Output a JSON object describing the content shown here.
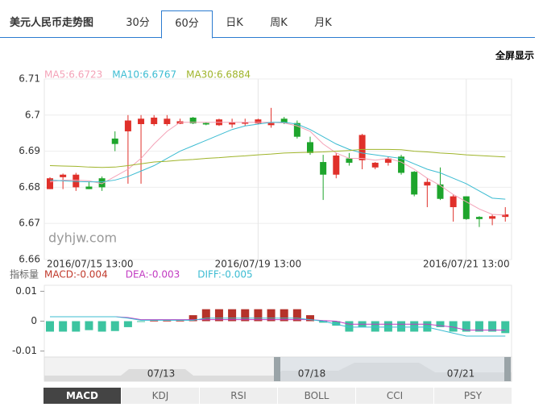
{
  "tabs": [
    "美元人民币走势图",
    "30分",
    "60分",
    "日K",
    "周K",
    "月K"
  ],
  "fullscreen": "全屏显示",
  "watermark": "dyhjw.com",
  "indicator_label": "指标量",
  "indicator_tabs": [
    "MACD",
    "KDJ",
    "RSI",
    "BOLL",
    "CCI",
    "PSY"
  ],
  "navigator_labels": [
    "07/13",
    "07/18",
    "07/21"
  ],
  "chart_data": [
    {
      "type": "candlestick",
      "categories": [
        "2016/07/15 13:00",
        null,
        null,
        null,
        null,
        null,
        null,
        null,
        null,
        null,
        null,
        null,
        null,
        null,
        null,
        null,
        "2016/07/19 13:00",
        null,
        null,
        null,
        null,
        null,
        null,
        null,
        null,
        null,
        null,
        null,
        null,
        null,
        null,
        null,
        "2016/07/21 13:00",
        null,
        null,
        null
      ],
      "open": [
        6.6795,
        6.6828,
        6.68,
        6.6802,
        6.6825,
        6.6935,
        6.6955,
        6.6975,
        6.6975,
        6.6975,
        6.6976,
        6.6993,
        6.6978,
        6.6972,
        6.6974,
        6.6976,
        6.6977,
        6.6972,
        6.699,
        6.6978,
        6.6925,
        6.687,
        6.6835,
        6.688,
        6.6875,
        6.6855,
        6.6868,
        6.6885,
        6.6843,
        6.6805,
        6.6808,
        6.6745,
        6.6775,
        6.6718,
        6.6713,
        6.6718
      ],
      "high": [
        6.6828,
        6.6838,
        6.684,
        6.6815,
        6.683,
        6.6955,
        6.7,
        6.7,
        6.7,
        6.7,
        6.699,
        6.6995,
        6.698,
        6.699,
        6.699,
        6.699,
        6.699,
        6.702,
        6.6995,
        6.6985,
        6.694,
        6.689,
        6.6895,
        6.6895,
        6.6948,
        6.687,
        6.6885,
        6.689,
        6.6845,
        6.6825,
        6.6855,
        6.678,
        6.6775,
        6.672,
        6.6725,
        6.6745
      ],
      "low": [
        6.6795,
        6.6795,
        6.679,
        6.6795,
        6.679,
        6.69,
        6.681,
        6.681,
        6.697,
        6.697,
        6.6975,
        6.6975,
        6.6972,
        6.697,
        6.6965,
        6.697,
        6.6975,
        6.6965,
        6.6975,
        6.6935,
        6.689,
        6.6765,
        6.6825,
        6.686,
        6.685,
        6.685,
        6.686,
        6.6835,
        6.6775,
        6.6745,
        6.6765,
        6.6705,
        6.671,
        6.669,
        6.6695,
        6.6705
      ],
      "close": [
        6.6825,
        6.6835,
        6.6835,
        6.6795,
        6.68,
        6.692,
        6.6985,
        6.699,
        6.6993,
        6.699,
        6.6983,
        6.6977,
        6.6974,
        6.6988,
        6.698,
        6.698,
        6.6988,
        6.6978,
        6.6978,
        6.694,
        6.6895,
        6.6835,
        6.6888,
        6.6868,
        6.6945,
        6.6868,
        6.688,
        6.684,
        6.678,
        6.6815,
        6.6768,
        6.6775,
        6.6712,
        6.6712,
        6.672,
        6.6725
      ],
      "up_color": "#e0302a",
      "down_color": "#1ea52c",
      "series": [
        {
          "label": "MA5:6.6723",
          "color": "#f4a3b8",
          "values": [
            6.6815,
            6.682,
            6.682,
            6.6818,
            6.681,
            6.683,
            6.685,
            6.688,
            6.692,
            6.6955,
            6.698,
            6.698,
            6.698,
            6.698,
            6.698,
            6.698,
            6.698,
            6.698,
            6.6978,
            6.697,
            6.6955,
            6.692,
            6.6895,
            6.688,
            6.688,
            6.6875,
            6.688,
            6.687,
            6.685,
            6.6825,
            6.6805,
            6.678,
            6.676,
            6.674,
            6.6725,
            6.6723
          ]
        },
        {
          "label": "MA10:6.6767",
          "color": "#3cbcd2",
          "values": [
            6.682,
            6.6818,
            6.6816,
            6.6815,
            6.6815,
            6.682,
            6.683,
            6.6845,
            6.686,
            6.688,
            6.69,
            6.6915,
            6.693,
            6.6945,
            6.696,
            6.697,
            6.6975,
            6.698,
            6.698,
            6.6975,
            6.696,
            6.694,
            6.692,
            6.6905,
            6.6895,
            6.689,
            6.6885,
            6.688,
            6.6865,
            6.685,
            6.684,
            6.6825,
            6.681,
            6.679,
            6.677,
            6.6767
          ]
        },
        {
          "label": "MA30:6.6884",
          "color": "#9fb42a",
          "values": [
            6.686,
            6.6859,
            6.6858,
            6.6856,
            6.6855,
            6.6856,
            6.686,
            6.6865,
            6.687,
            6.6872,
            6.6875,
            6.6877,
            6.688,
            6.6882,
            6.6885,
            6.6887,
            6.689,
            6.6892,
            6.6895,
            6.6896,
            6.6897,
            6.6898,
            6.69,
            6.6902,
            6.6905,
            6.6905,
            6.6905,
            6.6904,
            6.69,
            6.6898,
            6.6895,
            6.6893,
            6.689,
            6.6888,
            6.6886,
            6.6884
          ]
        }
      ],
      "ylim": [
        6.66,
        6.71
      ],
      "yticks": [
        6.71,
        6.7,
        6.69,
        6.68,
        6.67,
        6.66
      ],
      "grid": true
    },
    {
      "type": "macd",
      "ylim": [
        -0.012,
        0.012
      ],
      "yticks": [
        0.01,
        0,
        -0.01
      ],
      "up_color": "#b5322a",
      "down_color": "#3cc4a0",
      "histogram": {
        "label": "MACD:-0.004",
        "values": [
          -0.0035,
          -0.0035,
          -0.0035,
          -0.003,
          -0.0035,
          -0.0033,
          -0.002,
          -0.0002,
          0.0002,
          0.0002,
          0.0002,
          0.002,
          0.004,
          0.004,
          0.004,
          0.004,
          0.004,
          0.004,
          0.004,
          0.004,
          0.002,
          -0.0005,
          -0.0015,
          -0.0035,
          -0.002,
          -0.0035,
          -0.0035,
          -0.0035,
          -0.0035,
          -0.0035,
          -0.002,
          -0.0035,
          -0.0035,
          -0.0035,
          -0.0035,
          -0.004
        ]
      },
      "series": [
        {
          "label": "DEA:-0.003",
          "color": "#c23ac2",
          "values": [
            0.0015,
            0.0015,
            0.0015,
            0.0015,
            0.0015,
            0.0015,
            0.0012,
            0.0005,
            0.0005,
            0.0005,
            0.0005,
            0.0005,
            0.0005,
            0.0005,
            0.0005,
            0.0005,
            0.0005,
            0.0005,
            0.0005,
            0.0005,
            0.0005,
            0.0002,
            0,
            -0.001,
            -0.001,
            -0.001,
            -0.001,
            -0.001,
            -0.001,
            -0.001,
            -0.0015,
            -0.002,
            -0.003,
            -0.003,
            -0.003,
            -0.003
          ]
        },
        {
          "label": "DIFF:-0.005",
          "color": "#3cbcd2",
          "values": [
            0.0015,
            0.0015,
            0.0015,
            0.0015,
            0.0015,
            0.0015,
            0.001,
            0.0003,
            0.0003,
            0.0003,
            0.0003,
            0.0003,
            0.001,
            0.001,
            0.001,
            0.001,
            0.001,
            0.001,
            0.001,
            0.001,
            0.0005,
            0,
            -0.001,
            -0.002,
            -0.002,
            -0.002,
            -0.002,
            -0.002,
            -0.002,
            -0.002,
            -0.003,
            -0.004,
            -0.005,
            -0.005,
            -0.005,
            -0.005
          ]
        }
      ]
    }
  ]
}
